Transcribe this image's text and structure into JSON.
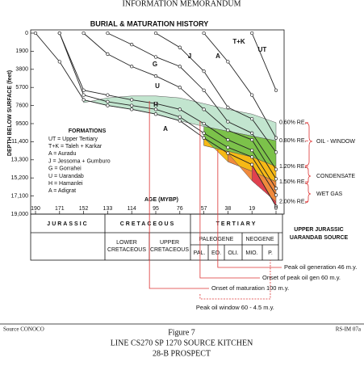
{
  "header": {
    "title": "INFORMATION MEMORANDUM"
  },
  "chart_data": {
    "type": "line",
    "title": "BURIAL & MATURATION HISTORY",
    "y_label": "DEPTH BELOW SURFACE (feet)",
    "x_label": "AGE (MYBP)",
    "x": [
      190,
      171,
      152,
      133,
      114,
      95,
      76,
      57,
      38,
      19,
      0
    ],
    "xlim": [
      190,
      0
    ],
    "xticks": [
      190,
      171,
      152,
      133,
      114,
      95,
      76,
      57,
      38,
      19,
      0
    ],
    "ylim": [
      0,
      19000
    ],
    "yticks": [
      0,
      1900,
      3800,
      5700,
      7600,
      9500,
      {
        "value": 11400,
        "label": "11,400"
      },
      {
        "value": 13300,
        "label": "13,300"
      },
      {
        "value": 15200,
        "label": "15,200"
      },
      {
        "value": 17100,
        "label": "17,100"
      },
      {
        "value": 19000,
        "label": "19,000"
      }
    ],
    "series": [
      {
        "name": "UT",
        "color": "#222222",
        "values": [
          null,
          null,
          null,
          null,
          null,
          null,
          null,
          null,
          null,
          0,
          6000
        ]
      },
      {
        "name": "T+K",
        "color": "#222222",
        "values": [
          null,
          null,
          null,
          null,
          null,
          null,
          null,
          0,
          3000,
          6500,
          11000
        ]
      },
      {
        "name": "A",
        "color": "#222222",
        "values": [
          null,
          null,
          null,
          null,
          null,
          0,
          1500,
          4000,
          7800,
          9000,
          12500
        ]
      },
      {
        "name": "J",
        "color": "#222222",
        "values": [
          null,
          null,
          null,
          0,
          1200,
          2500,
          3500,
          6000,
          9300,
          10500,
          14300
        ]
      },
      {
        "name": "G",
        "color": "#222222",
        "values": [
          null,
          null,
          0,
          2200,
          3500,
          4500,
          5700,
          8000,
          10200,
          11200,
          15300
        ]
      },
      {
        "name": "U",
        "color": "#222222",
        "values": [
          null,
          0,
          6000,
          6500,
          7000,
          7400,
          8000,
          9500,
          11200,
          12300,
          16300
        ]
      },
      {
        "name": "H",
        "color": "#222222",
        "values": [
          null,
          0,
          6500,
          7200,
          7600,
          8000,
          8800,
          10500,
          12000,
          13000,
          17000
        ]
      },
      {
        "name": "A",
        "color": "#222222",
        "values": [
          0,
          3000,
          7000,
          7600,
          8000,
          8500,
          9200,
          11000,
          12600,
          13800,
          18200
        ]
      }
    ],
    "maturity": [
      {
        "name": "0.60% RE.",
        "color": "#c2e5cf",
        "values": [
          null,
          null,
          7300,
          6800,
          6600,
          6600,
          6800,
          7400,
          8000,
          8500,
          9400
        ]
      },
      {
        "name": "0.80% RE.",
        "color": "#7cc24a",
        "values": [
          null,
          null,
          null,
          null,
          null,
          null,
          null,
          9800,
          10300,
          10800,
          11300
        ]
      },
      {
        "name": "1.20% RE.",
        "color": "#f6b916",
        "values": [
          null,
          null,
          null,
          null,
          null,
          null,
          null,
          11800,
          12400,
          13000,
          14000
        ]
      },
      {
        "name": "1.50% RE.",
        "color": "#f08a3c",
        "values": [
          null,
          null,
          null,
          null,
          null,
          null,
          null,
          null,
          13500,
          14500,
          15600
        ]
      },
      {
        "name": "2.00% RE.",
        "color": "#e0414f",
        "values": [
          null,
          null,
          null,
          null,
          null,
          null,
          null,
          null,
          null,
          15500,
          17700
        ]
      }
    ],
    "zones": [
      "OIL - WINDOW",
      "CONDENSATE",
      "WET GAS"
    ],
    "legend_title": "FORMATIONS",
    "legend": [
      "UT = Upper Tertiary",
      "T+K = Taleh + Karkar",
      "A = Auradu",
      "J = Jessoma + Gumburo",
      "G = Gorrahei",
      "U = Uarandab",
      "H = Hamanlei",
      "A = Adigrat"
    ],
    "markers": [
      {
        "age": 46,
        "label": "Peak oil generation 46 m.y."
      },
      {
        "age": 60,
        "label": "Onset of peak oil gen 60 m.y."
      },
      {
        "age": 100,
        "label": "Onset of maturation 100 m.y."
      }
    ],
    "window": {
      "from": 60,
      "to": 4.5,
      "label": "Peak oil window 60 - 4.5 m.y."
    },
    "source_label": [
      "UPPER JURASSIC",
      "UARANDAB SOURCE"
    ]
  },
  "timescale": {
    "periods": [
      "JURASSIC",
      "CRETACEOUS",
      "TERTIARY"
    ],
    "cretaceous": [
      [
        "LOWER",
        "CRETACEOUS"
      ],
      [
        "UPPER",
        "CRETACEOUS"
      ]
    ],
    "tertiary": [
      "PALEOGENE",
      "NEOGENE"
    ],
    "epochs": [
      "PAL.",
      "EO.",
      "OLI.",
      "MIO.",
      "P."
    ]
  },
  "footer": {
    "source": "Source CONOCO",
    "ref": "RS-IM 07a",
    "figure": "Figure 7",
    "caption": [
      "LINE CS270 SP 1270 SOURCE KITCHEN",
      "28-B PROSPECT"
    ]
  }
}
